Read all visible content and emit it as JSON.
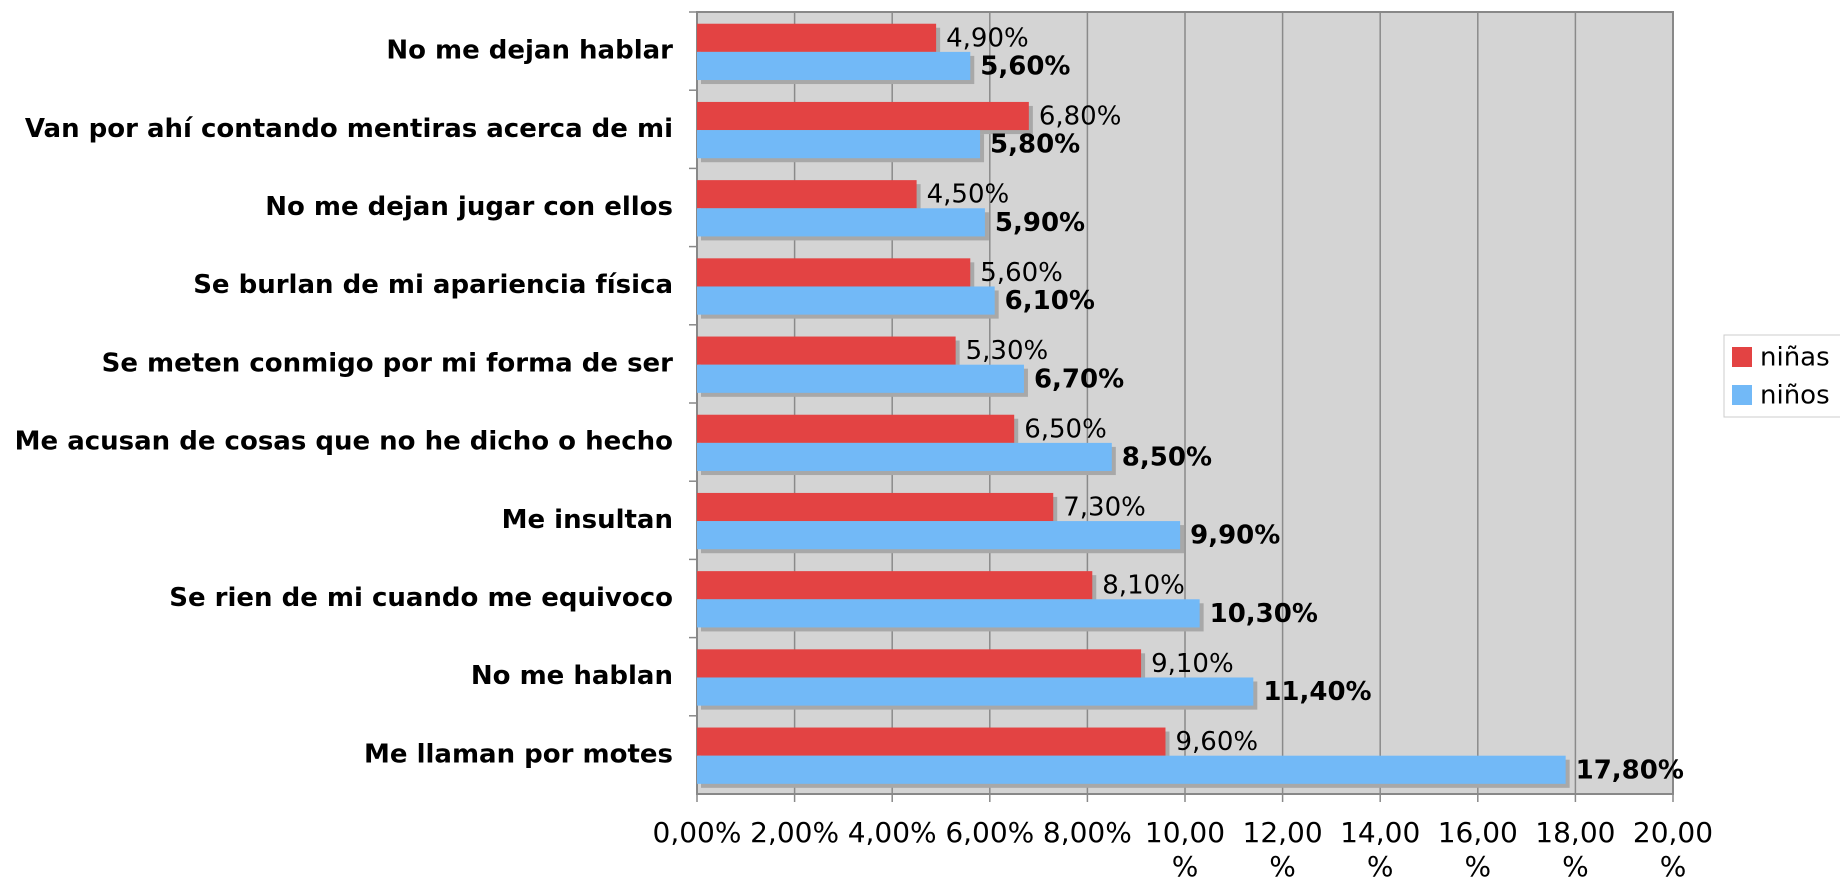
{
  "chart_data": {
    "type": "bar",
    "orientation": "horizontal",
    "categories": [
      "No me dejan hablar",
      "Van por ahí contando mentiras acerca de mi",
      "No me dejan jugar con ellos",
      "Se burlan de mi apariencia física",
      "Se meten conmigo por mi forma de ser",
      "Me acusan de cosas que no he dicho o hecho",
      "Me insultan",
      "Se rien de mi cuando me equivoco",
      "No me hablan",
      "Me llaman por motes"
    ],
    "series": [
      {
        "name": "niñas",
        "color": "#e34343",
        "values": [
          4.9,
          6.8,
          4.5,
          5.6,
          5.3,
          6.5,
          7.3,
          8.1,
          9.1,
          9.6
        ],
        "value_labels": [
          "4,90%",
          "6,80%",
          "4,50%",
          "5,60%",
          "5,30%",
          "6,50%",
          "7,30%",
          "8,10%",
          "9,10%",
          "9,60%"
        ]
      },
      {
        "name": "niños",
        "color": "#72b9f7",
        "values": [
          5.6,
          5.8,
          5.9,
          6.1,
          6.7,
          8.5,
          9.9,
          10.3,
          11.4,
          17.8
        ],
        "value_labels": [
          "5,60%",
          "5,80%",
          "5,90%",
          "6,10%",
          "6,70%",
          "8,50%",
          "9,90%",
          "10,30%",
          "11,40%",
          "17,80%"
        ]
      }
    ],
    "xlim": [
      0,
      20
    ],
    "xticks": [
      {
        "value": 0,
        "label": "0,00%"
      },
      {
        "value": 2,
        "label": "2,00%"
      },
      {
        "value": 4,
        "label": "4,00%"
      },
      {
        "value": 6,
        "label": "6,00%"
      },
      {
        "value": 8,
        "label": "8,00%"
      },
      {
        "value": 10,
        "label": "10,00%"
      },
      {
        "value": 12,
        "label": "12,00%"
      },
      {
        "value": 14,
        "label": "14,00%"
      },
      {
        "value": 16,
        "label": "16,00%"
      },
      {
        "value": 18,
        "label": "18,00%"
      },
      {
        "value": 20,
        "label": "20,00%"
      }
    ],
    "grid": true,
    "legend": "right"
  }
}
